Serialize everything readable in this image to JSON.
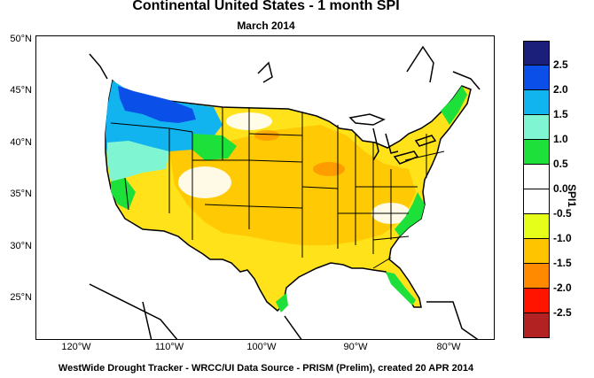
{
  "title": "Continental United States - 1 month SPI",
  "subtitle": "March 2014",
  "footer": "WestWide Drought Tracker - WRCC/UI  Data Source - PRISM (Prelim), created 20 APR 2014",
  "axes": {
    "lat_labels": [
      "50°N",
      "45°N",
      "40°N",
      "35°N",
      "30°N",
      "25°N"
    ],
    "lon_labels": [
      "120°W",
      "110°W",
      "100°W",
      "90°W",
      "80°W"
    ]
  },
  "legend": {
    "title": "SPI1",
    "colors": [
      "#1b1f7a",
      "#0a4fe8",
      "#12b4f0",
      "#7ff5d2",
      "#1ee03a",
      "#ffffff",
      "#ffffff",
      "#e6ff1a",
      "#ffc400",
      "#ff8a00",
      "#ff1400",
      "#b22222"
    ],
    "ticks": [
      "2.5",
      "2.0",
      "1.5",
      "1.0",
      "0.5",
      "0.0",
      "-0.5",
      "-1.0",
      "-1.5",
      "-2.0",
      "-2.5"
    ]
  },
  "colors": {
    "wet_strong": "#0a4fe8",
    "wet_moderate": "#12b4f0",
    "wet_light": "#7ff5d2",
    "wet_slight": "#1ee03a",
    "dry_slight": "#e6ff1a",
    "dry_moderate": "#ffc400",
    "dry_strong": "#ff8a00"
  }
}
